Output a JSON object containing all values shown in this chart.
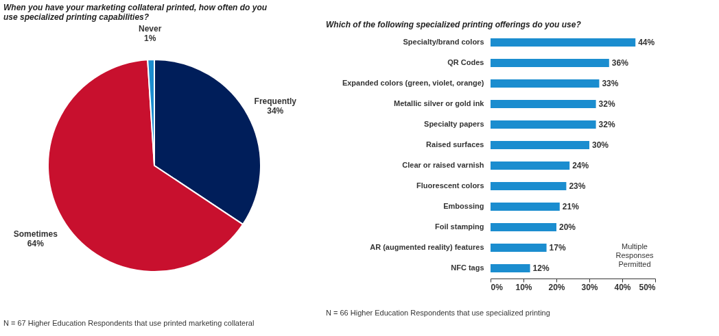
{
  "chart_data": [
    {
      "type": "pie",
      "title": [
        "When you have your marketing collateral printed, how often do you",
        "use specialized printing capabilities?"
      ],
      "categories": [
        "Frequently",
        "Sometimes",
        "Never"
      ],
      "values": [
        34,
        64,
        1
      ],
      "value_labels": [
        "34%",
        "64%",
        "1%"
      ],
      "colors": [
        "#001e5a",
        "#c8102e",
        "#1b8dcf"
      ],
      "legend": false,
      "annotations": [
        "N = 67 Higher Education Respondents that use printed marketing collateral"
      ]
    },
    {
      "type": "bar",
      "orientation": "horizontal",
      "title": "Which of the following specialized printing offerings do you use?",
      "categories": [
        "Specialty/brand colors",
        "QR Codes",
        "Expanded colors (green, violet, orange)",
        "Metallic silver or gold ink",
        "Specialty papers",
        "Raised surfaces",
        "Clear or raised varnish",
        "Fluorescent colors",
        "Embossing",
        "Foil stamping",
        "AR (augmented reality) features",
        "NFC tags"
      ],
      "values": [
        44,
        36,
        33,
        32,
        32,
        30,
        24,
        23,
        21,
        20,
        17,
        12
      ],
      "value_labels": [
        "44%",
        "36%",
        "33%",
        "32%",
        "32%",
        "30%",
        "24%",
        "23%",
        "21%",
        "20%",
        "17%",
        "12%"
      ],
      "color": "#1b8dcf",
      "xlim": [
        0,
        50
      ],
      "xticks": [
        {
          "value": 0,
          "label": "0%"
        },
        {
          "value": 10,
          "label": "10%"
        },
        {
          "value": 20,
          "label": "20%"
        },
        {
          "value": 30,
          "label": "30%"
        },
        {
          "value": 40,
          "label": "40%"
        },
        {
          "value": 50,
          "label": "50%"
        }
      ],
      "grid": false,
      "annotations": [
        "Multiple Responses Permitted",
        "N = 66 Higher Education Respondents that use specialized printing"
      ]
    }
  ]
}
